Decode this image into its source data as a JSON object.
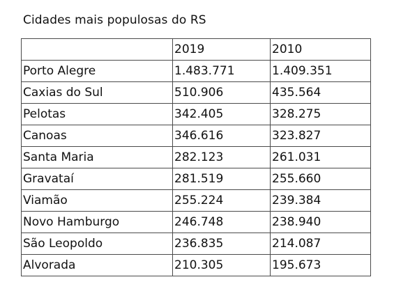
{
  "document": {
    "title": "Cidades mais populosas do RS"
  },
  "table": {
    "headers": [
      "",
      "2019",
      "2010"
    ],
    "rows": [
      {
        "city": "Porto Alegre",
        "pop_2019": "1.483.771",
        "pop_2010": "1.409.351"
      },
      {
        "city": "Caxias do Sul",
        "pop_2019": "510.906",
        "pop_2010": "435.564"
      },
      {
        "city": "Pelotas",
        "pop_2019": "342.405",
        "pop_2010": "328.275"
      },
      {
        "city": "Canoas",
        "pop_2019": "346.616",
        "pop_2010": "323.827"
      },
      {
        "city": "Santa Maria",
        "pop_2019": "282.123",
        "pop_2010": "261.031"
      },
      {
        "city": "Gravataí",
        "pop_2019": "281.519",
        "pop_2010": "255.660"
      },
      {
        "city": "Viamão",
        "pop_2019": "255.224",
        "pop_2010": "239.384"
      },
      {
        "city": "Novo Hamburgo",
        "pop_2019": "246.748",
        "pop_2010": "238.940"
      },
      {
        "city": "São Leopoldo",
        "pop_2019": "236.835",
        "pop_2010": "214.087"
      },
      {
        "city": "Alvorada",
        "pop_2019": "210.305",
        "pop_2010": "195.673"
      }
    ]
  },
  "chart_data": {
    "type": "table",
    "title": "Cidades mais populosas do RS",
    "columns": [
      "",
      "2019",
      "2010"
    ],
    "rows": [
      [
        "Porto Alegre",
        "1.483.771",
        "1.409.351"
      ],
      [
        "Caxias do Sul",
        "510.906",
        "435.564"
      ],
      [
        "Pelotas",
        "342.405",
        "328.275"
      ],
      [
        "Canoas",
        "346.616",
        "323.827"
      ],
      [
        "Santa Maria",
        "282.123",
        "261.031"
      ],
      [
        "Gravataí",
        "281.519",
        "255.660"
      ],
      [
        "Viamão",
        "255.224",
        "239.384"
      ],
      [
        "Novo Hamburgo",
        "246.748",
        "238.940"
      ],
      [
        "São Leopoldo",
        "236.835",
        "214.087"
      ],
      [
        "Alvorada",
        "210.305",
        "195.673"
      ]
    ]
  }
}
